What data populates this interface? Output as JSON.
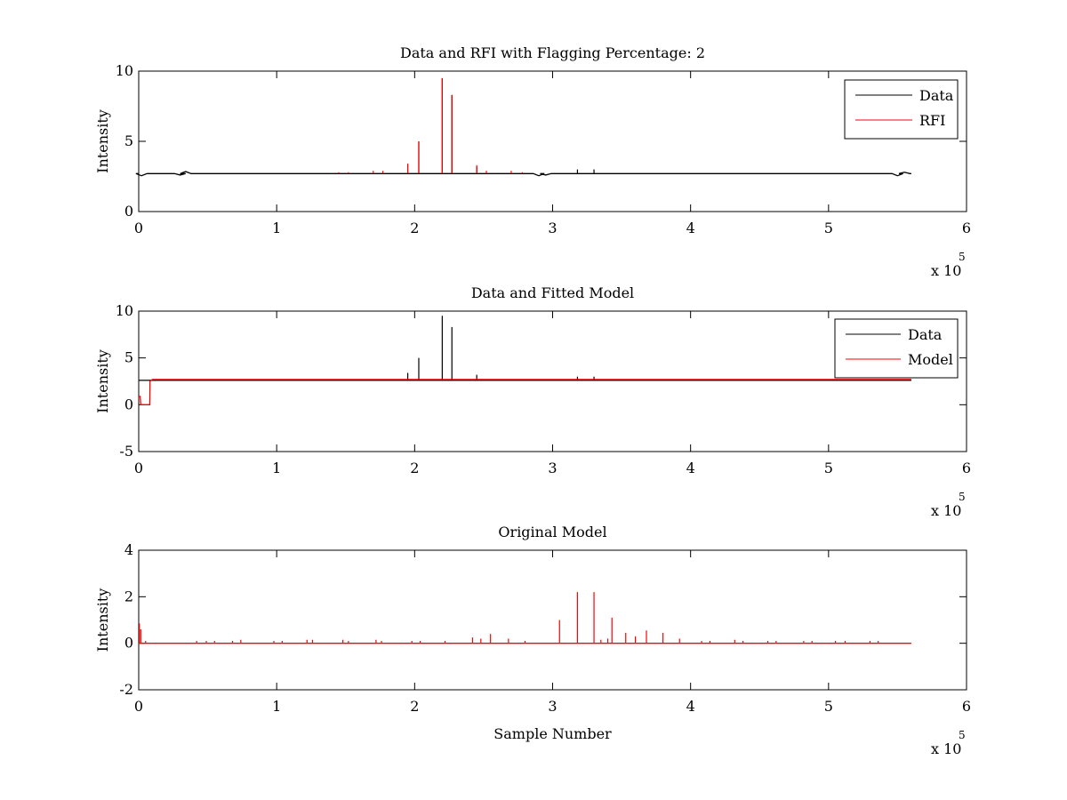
{
  "figure": {
    "background": "#ffffff"
  },
  "chart_data": [
    {
      "type": "line",
      "title": "Data and RFI with Flagging Percentage: 2",
      "xlabel": "",
      "ylabel": "Intensity",
      "xlim": [
        0,
        600000
      ],
      "ylim": [
        0,
        10
      ],
      "xticks": [
        0,
        100000,
        200000,
        300000,
        400000,
        500000,
        600000
      ],
      "xtick_labels": [
        "0",
        "1",
        "2",
        "3",
        "4",
        "5",
        "6"
      ],
      "x_multiplier": "x 10",
      "x_multiplier_exp": "5",
      "yticks": [
        0,
        5,
        10
      ],
      "ytick_labels": [
        "0",
        "5",
        "10"
      ],
      "grid": false,
      "legend_placement": "top-right",
      "series": [
        {
          "name": "Data",
          "color": "#000000",
          "baseline": 2.7,
          "x_end": 560000,
          "dips": [
            [
              2000,
              2.55
            ],
            [
              30000,
              2.6
            ],
            [
              34000,
              2.85
            ],
            [
              290000,
              2.55
            ],
            [
              295000,
              2.6
            ],
            [
              550000,
              2.55
            ],
            [
              555000,
              2.8
            ]
          ],
          "spikes": [
            [
              195000,
              3.4
            ],
            [
              203000,
              5.0
            ],
            [
              220000,
              9.5
            ],
            [
              227000,
              8.3
            ],
            [
              245000,
              3.2
            ],
            [
              318000,
              3.0
            ],
            [
              330000,
              3.0
            ]
          ]
        },
        {
          "name": "RFI",
          "color": "#ff0000",
          "spikes": [
            [
              145000,
              2.8
            ],
            [
              152000,
              2.8
            ],
            [
              170000,
              2.9
            ],
            [
              177000,
              2.9
            ],
            [
              195000,
              3.4
            ],
            [
              203000,
              5.0
            ],
            [
              220000,
              9.5
            ],
            [
              227000,
              8.3
            ],
            [
              245000,
              3.3
            ],
            [
              252000,
              2.9
            ],
            [
              270000,
              2.9
            ],
            [
              278000,
              2.8
            ]
          ]
        }
      ]
    },
    {
      "type": "line",
      "title": "Data and Fitted Model",
      "xlabel": "",
      "ylabel": "Intensity",
      "xlim": [
        0,
        600000
      ],
      "ylim": [
        -5,
        10
      ],
      "xticks": [
        0,
        100000,
        200000,
        300000,
        400000,
        500000,
        600000
      ],
      "xtick_labels": [
        "0",
        "1",
        "2",
        "3",
        "4",
        "5",
        "6"
      ],
      "x_multiplier": "x 10",
      "x_multiplier_exp": "5",
      "yticks": [
        -5,
        0,
        5,
        10
      ],
      "ytick_labels": [
        "-5",
        "0",
        "5",
        "10"
      ],
      "grid": false,
      "legend_placement": "top-right",
      "series": [
        {
          "name": "Data",
          "color": "#000000",
          "baseline": 2.6,
          "x_end": 560000,
          "spikes": [
            [
              195000,
              3.4
            ],
            [
              203000,
              5.0
            ],
            [
              220000,
              9.5
            ],
            [
              227000,
              8.3
            ],
            [
              245000,
              3.2
            ],
            [
              318000,
              3.0
            ],
            [
              330000,
              3.0
            ]
          ]
        },
        {
          "name": "Model",
          "color": "#ff0000",
          "baseline": 2.7,
          "x_end": 560000,
          "start_segment": [
            [
              0,
              0.9
            ],
            [
              1000,
              0.9
            ],
            [
              1500,
              0.0
            ],
            [
              8000,
              0.0
            ],
            [
              8200,
              2.5
            ],
            [
              10000,
              2.7
            ]
          ]
        }
      ]
    },
    {
      "type": "line",
      "title": "Original Model",
      "xlabel": "Sample Number",
      "ylabel": "Intensity",
      "xlim": [
        0,
        600000
      ],
      "ylim": [
        -2,
        4
      ],
      "xticks": [
        0,
        100000,
        200000,
        300000,
        400000,
        500000,
        600000
      ],
      "xtick_labels": [
        "0",
        "1",
        "2",
        "3",
        "4",
        "5",
        "6"
      ],
      "x_multiplier": "x 10",
      "x_multiplier_exp": "5",
      "yticks": [
        -2,
        0,
        2,
        4
      ],
      "ytick_labels": [
        "-2",
        "0",
        "2",
        "4"
      ],
      "grid": false,
      "series": [
        {
          "name": "",
          "color": "#ff0000",
          "baseline": 0,
          "x_end": 560000,
          "spikes": [
            [
              500,
              0.85
            ],
            [
              1500,
              0.6
            ],
            [
              5000,
              0.1
            ],
            [
              42000,
              0.1
            ],
            [
              49000,
              0.1
            ],
            [
              55000,
              0.1
            ],
            [
              68000,
              0.1
            ],
            [
              74000,
              0.15
            ],
            [
              98000,
              0.1
            ],
            [
              104000,
              0.1
            ],
            [
              122000,
              0.15
            ],
            [
              126000,
              0.15
            ],
            [
              148000,
              0.15
            ],
            [
              152000,
              0.1
            ],
            [
              172000,
              0.15
            ],
            [
              176000,
              0.1
            ],
            [
              198000,
              0.1
            ],
            [
              204000,
              0.1
            ],
            [
              222000,
              0.1
            ],
            [
              242000,
              0.25
            ],
            [
              248000,
              0.2
            ],
            [
              255000,
              0.4
            ],
            [
              268000,
              0.2
            ],
            [
              280000,
              0.1
            ],
            [
              305000,
              1.0
            ],
            [
              318000,
              2.2
            ],
            [
              330000,
              2.2
            ],
            [
              335000,
              0.15
            ],
            [
              340000,
              0.2
            ],
            [
              343000,
              1.1
            ],
            [
              353000,
              0.45
            ],
            [
              360000,
              0.3
            ],
            [
              368000,
              0.55
            ],
            [
              380000,
              0.45
            ],
            [
              392000,
              0.2
            ],
            [
              408000,
              0.1
            ],
            [
              414000,
              0.1
            ],
            [
              432000,
              0.15
            ],
            [
              438000,
              0.1
            ],
            [
              456000,
              0.1
            ],
            [
              462000,
              0.1
            ],
            [
              482000,
              0.1
            ],
            [
              488000,
              0.1
            ],
            [
              505000,
              0.1
            ],
            [
              512000,
              0.1
            ],
            [
              530000,
              0.1
            ],
            [
              536000,
              0.1
            ]
          ]
        }
      ]
    }
  ]
}
